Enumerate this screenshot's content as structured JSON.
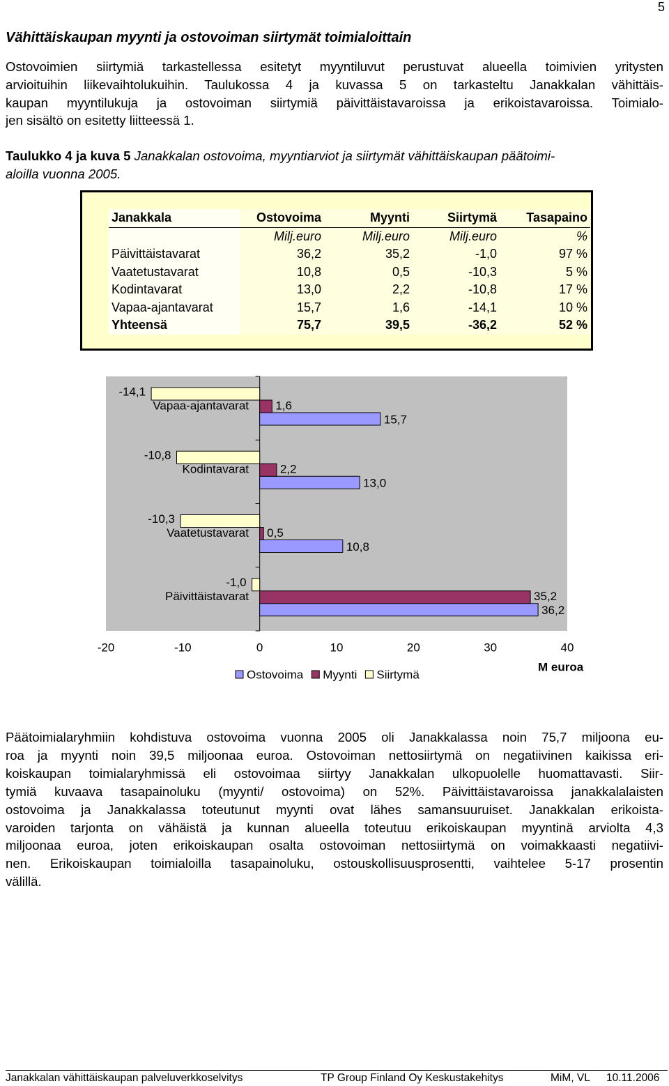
{
  "page_number": "5",
  "heading": "Vähittäiskaupan myynti ja ostovoiman siirtymät toimialoittain",
  "intro": [
    "Ostovoimien siirtymiä tarkastellessa esitetyt myyntiluvut perustuvat alueella toimivien yritysten",
    "arvioituihin liikevaihtolukuihin. Taulukossa 4 ja kuvassa 5 on tarkasteltu Janakkalan vähittäis-",
    "kaupan myyntilukuja ja ostovoiman siirtymiä päivittäistavaroissa ja erikoistavaroissa. Toimialo-",
    "jen sisältö on esitetty liitteessä 1."
  ],
  "caption": {
    "label": "Taulukko 4 ja kuva 5",
    "lines": [
      "Janakkalan ostovoima, myyntiarviot ja siirtymät vähittäiskaupan päätoimi-",
      "aloilla vuonna 2005."
    ]
  },
  "table": {
    "header": [
      "Janakkala",
      "Ostovoima",
      "Myynti",
      "Siirtymä",
      "Tasapaino"
    ],
    "units": [
      "Milj.euro",
      "Milj.euro",
      "Milj.euro",
      "%"
    ],
    "rows": [
      [
        "Päivittäistavarat",
        "36,2",
        "35,2",
        "-1,0",
        "97 %"
      ],
      [
        "Vaatetustavarat",
        "10,8",
        "0,5",
        "-10,3",
        "5 %"
      ],
      [
        "Kodintavarat",
        "13,0",
        "2,2",
        "-10,8",
        "17 %"
      ],
      [
        "Vapaa-ajantavarat",
        "15,7",
        "1,6",
        "-14,1",
        "10 %"
      ]
    ],
    "total": [
      "Yhteensä",
      "75,7",
      "39,5",
      "-36,2",
      "52 %"
    ]
  },
  "chart_data": {
    "type": "bar",
    "orientation": "horizontal",
    "categories": [
      "Päivittäistavarat",
      "Vaatetustavarat",
      "Kodintavarat",
      "Vapaa-ajantavarat"
    ],
    "series": [
      {
        "name": "Ostovoima",
        "color": "#9999ff",
        "values": [
          36.2,
          10.8,
          13.0,
          15.7
        ],
        "value_labels": [
          "36,2",
          "10,8",
          "13,0",
          "15,7"
        ]
      },
      {
        "name": "Myynti",
        "color": "#993366",
        "values": [
          35.2,
          0.5,
          2.2,
          1.6
        ],
        "value_labels": [
          "35,2",
          "0,5",
          "2,2",
          "1,6"
        ]
      },
      {
        "name": "Siirtymä",
        "color": "#ffffcc",
        "values": [
          -1.0,
          -10.3,
          -10.8,
          -14.1
        ],
        "value_labels": [
          "-1,0",
          "-10,3",
          "-10,8",
          "-14,1"
        ]
      }
    ],
    "xlim": [
      -20,
      40
    ],
    "xticks": [
      -20,
      -10,
      0,
      10,
      20,
      30,
      40
    ],
    "x_label": "M euroa",
    "legend": "bottom",
    "plot_background": "#c0c0c0"
  },
  "body": [
    "Päätoimialaryhmiin kohdistuva ostovoima vuonna 2005 oli Janakkalassa noin 75,7 miljoona eu-",
    "roa ja myynti noin 39,5 miljoonaa euroa. Ostovoiman nettosiirtymä on negatiivinen kaikissa eri-",
    "koiskaupan toimialaryhmissä eli ostovoimaa siirtyy Janakkalan ulkopuolelle huomattavasti. Siir-",
    "tymiä kuvaava tasapainoluku (myynti/ ostovoima) on 52%. Päivittäistavaroissa janakkalalaisten",
    "ostovoima ja Janakkalassa toteutunut myynti ovat lähes samansuuruiset. Janakkalan erikoista-",
    "varoiden tarjonta on vähäistä ja kunnan alueella toteutuu erikoiskaupan myyntinä arviolta 4,3",
    "miljoonaa euroa, joten erikoiskaupan osalta ostovoiman nettosiirtymä on voimakkaasti negatiivi-",
    "nen. Erikoiskaupan toimialoilla tasapainoluku, ostouskollisuusprosentti, vaihtelee 5-17 prosentin",
    "välillä."
  ],
  "footer": [
    "Janakkalan vähittäiskaupan palveluverkkoselvitys",
    "TP Group Finland Oy Keskustakehitys",
    "MiM, VL",
    "10.11.2006"
  ]
}
